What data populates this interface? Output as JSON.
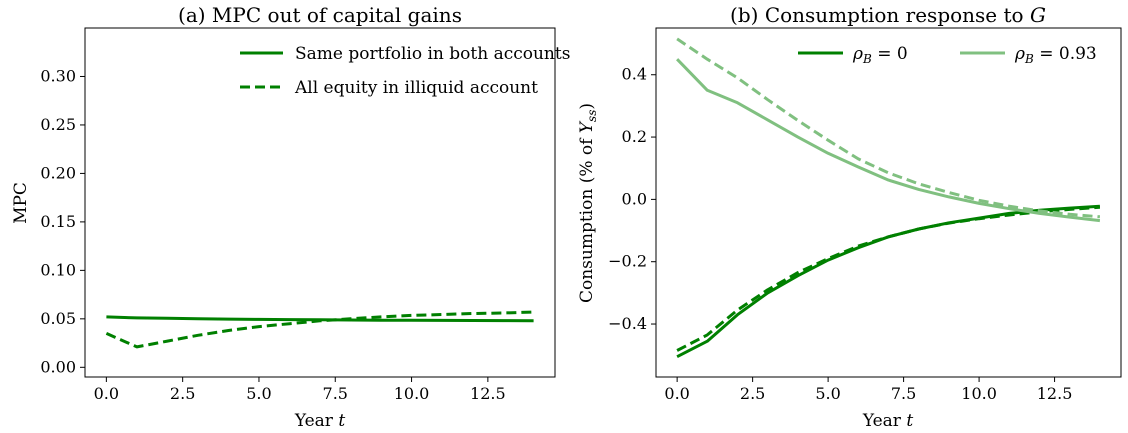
{
  "colors": {
    "dark": "#008000",
    "light": "#80c080"
  },
  "chart_data": [
    {
      "type": "line",
      "title": "(a) MPC out of capital gains",
      "xlabel": "Year t",
      "ylabel": "MPC",
      "xlim": [
        -0.7,
        14.7
      ],
      "ylim": [
        -0.01,
        0.35
      ],
      "xticks": [
        0,
        2.5,
        5,
        7.5,
        10,
        12.5
      ],
      "xtick_labels": [
        "0.0",
        "2.5",
        "5.0",
        "7.5",
        "10.0",
        "12.5"
      ],
      "yticks": [
        0,
        0.05,
        0.1,
        0.15,
        0.2,
        0.25,
        0.3
      ],
      "ytick_labels": [
        "0.00",
        "0.05",
        "0.10",
        "0.15",
        "0.20",
        "0.25",
        "0.30"
      ],
      "legend_position": "top-right",
      "x": [
        0,
        1,
        2,
        3,
        4,
        5,
        6,
        7,
        8,
        9,
        10,
        11,
        12,
        13,
        14
      ],
      "series": [
        {
          "name": "Same portfolio in both accounts",
          "style": "solid",
          "color": "dark",
          "values": [
            0.052,
            0.051,
            0.0505,
            0.05,
            0.0497,
            0.0494,
            0.0492,
            0.049,
            0.0488,
            0.0486,
            0.0485,
            0.0484,
            0.0483,
            0.0482,
            0.0481
          ]
        },
        {
          "name": "All equity in illiquid account",
          "style": "dashed",
          "color": "dark",
          "values": [
            0.035,
            0.021,
            0.027,
            0.033,
            0.038,
            0.042,
            0.045,
            0.048,
            0.05,
            0.052,
            0.0535,
            0.0545,
            0.0555,
            0.056,
            0.057
          ]
        }
      ]
    },
    {
      "type": "line",
      "title": "(b) Consumption response to G",
      "xlabel": "Year t",
      "ylabel": "Consumption (% of Y_ss)",
      "xlim": [
        -0.7,
        14.7
      ],
      "ylim": [
        -0.57,
        0.55
      ],
      "xticks": [
        0,
        2.5,
        5,
        7.5,
        10,
        12.5
      ],
      "xtick_labels": [
        "0.0",
        "2.5",
        "5.0",
        "7.5",
        "10.0",
        "12.5"
      ],
      "yticks": [
        -0.4,
        -0.2,
        0.0,
        0.2,
        0.4
      ],
      "ytick_labels": [
        "−0.4",
        "−0.2",
        "0.0",
        "0.2",
        "0.4"
      ],
      "legend_position": "top-right",
      "legend": [
        {
          "label": "ρ_B = 0",
          "color": "dark"
        },
        {
          "label": "ρ_B = 0.93",
          "color": "light"
        }
      ],
      "x": [
        0,
        1,
        2,
        3,
        4,
        5,
        6,
        7,
        8,
        9,
        10,
        11,
        12,
        13,
        14
      ],
      "series": [
        {
          "name": "ρ_B = 0",
          "style": "solid",
          "color": "dark",
          "values": [
            -0.505,
            -0.455,
            -0.37,
            -0.3,
            -0.245,
            -0.195,
            -0.155,
            -0.12,
            -0.095,
            -0.075,
            -0.06,
            -0.045,
            -0.035,
            -0.028,
            -0.022
          ]
        },
        {
          "name": "ρ_B = 0",
          "style": "dashed",
          "color": "dark",
          "values": [
            -0.485,
            -0.435,
            -0.355,
            -0.29,
            -0.235,
            -0.19,
            -0.15,
            -0.12,
            -0.095,
            -0.076,
            -0.062,
            -0.05,
            -0.04,
            -0.032,
            -0.025
          ]
        },
        {
          "name": "ρ_B = 0.93",
          "style": "solid",
          "color": "light",
          "values": [
            0.45,
            0.35,
            0.31,
            0.255,
            0.2,
            0.148,
            0.104,
            0.062,
            0.032,
            0.008,
            -0.013,
            -0.03,
            -0.045,
            -0.057,
            -0.068
          ]
        },
        {
          "name": "ρ_B = 0.93",
          "style": "dashed",
          "color": "light",
          "values": [
            0.515,
            0.45,
            0.39,
            0.32,
            0.253,
            0.19,
            0.13,
            0.085,
            0.05,
            0.022,
            -0.003,
            -0.022,
            -0.037,
            -0.048,
            -0.056
          ]
        }
      ]
    }
  ]
}
